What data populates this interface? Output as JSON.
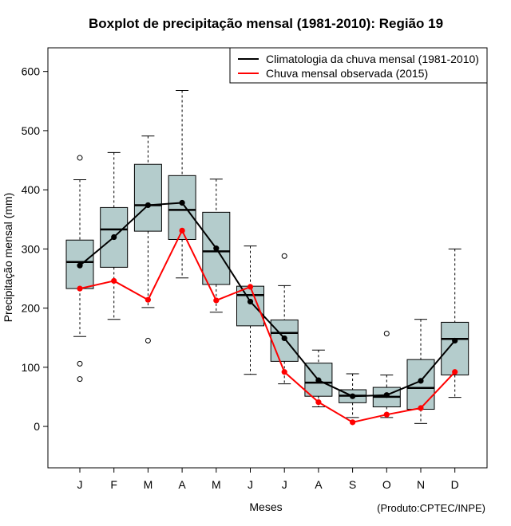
{
  "chart_data": {
    "type": "boxplot",
    "title": "Boxplot de precipitação mensal (1981-2010): Região 19",
    "xlabel": "Meses",
    "ylabel": "Precipitação mensal (mm)",
    "credit": "(Produto:CPTEC/INPE)",
    "ylim": [
      -70,
      640
    ],
    "yticks": [
      0,
      100,
      200,
      300,
      400,
      500,
      600
    ],
    "categories": [
      "J",
      "F",
      "M",
      "A",
      "M",
      "J",
      "J",
      "A",
      "S",
      "O",
      "N",
      "D"
    ],
    "boxes": [
      {
        "whisker_low": 152,
        "q1": 233,
        "median": 278,
        "q3": 315,
        "whisker_high": 417,
        "outliers": [
          454,
          106,
          80
        ]
      },
      {
        "whisker_low": 181,
        "q1": 269,
        "median": 333,
        "q3": 370,
        "whisker_high": 463,
        "outliers": []
      },
      {
        "whisker_low": 201,
        "q1": 330,
        "median": 374,
        "q3": 443,
        "whisker_high": 491,
        "outliers": [
          145
        ]
      },
      {
        "whisker_low": 251,
        "q1": 316,
        "median": 366,
        "q3": 424,
        "whisker_high": 568,
        "outliers": []
      },
      {
        "whisker_low": 193,
        "q1": 240,
        "median": 296,
        "q3": 362,
        "whisker_high": 418,
        "outliers": []
      },
      {
        "whisker_low": 88,
        "q1": 170,
        "median": 222,
        "q3": 237,
        "whisker_high": 305,
        "outliers": []
      },
      {
        "whisker_low": 72,
        "q1": 110,
        "median": 158,
        "q3": 180,
        "whisker_high": 238,
        "outliers": [
          288
        ]
      },
      {
        "whisker_low": 33,
        "q1": 51,
        "median": 74,
        "q3": 107,
        "whisker_high": 129,
        "outliers": []
      },
      {
        "whisker_low": 15,
        "q1": 40,
        "median": 52,
        "q3": 62,
        "whisker_high": 89,
        "outliers": []
      },
      {
        "whisker_low": 15,
        "q1": 33,
        "median": 50,
        "q3": 66,
        "whisker_high": 87,
        "outliers": [
          157
        ]
      },
      {
        "whisker_low": 5,
        "q1": 29,
        "median": 65,
        "q3": 113,
        "whisker_high": 181,
        "outliers": []
      },
      {
        "whisker_low": 49,
        "q1": 87,
        "median": 148,
        "q3": 176,
        "whisker_high": 300,
        "outliers": []
      }
    ],
    "series": [
      {
        "name": "Climatologia da chuva mensal (1981-2010)",
        "color": "#000000",
        "values": [
          272,
          320,
          374,
          378,
          301,
          211,
          149,
          78,
          51,
          53,
          77,
          145
        ]
      },
      {
        "name": "Chuva mensal observada (2015)",
        "color": "#ff0000",
        "values": [
          233,
          246,
          214,
          331,
          213,
          236,
          92,
          41,
          7,
          20,
          31,
          92
        ]
      }
    ],
    "box_fill": "#b4cccc",
    "legend_position": "top-right"
  }
}
